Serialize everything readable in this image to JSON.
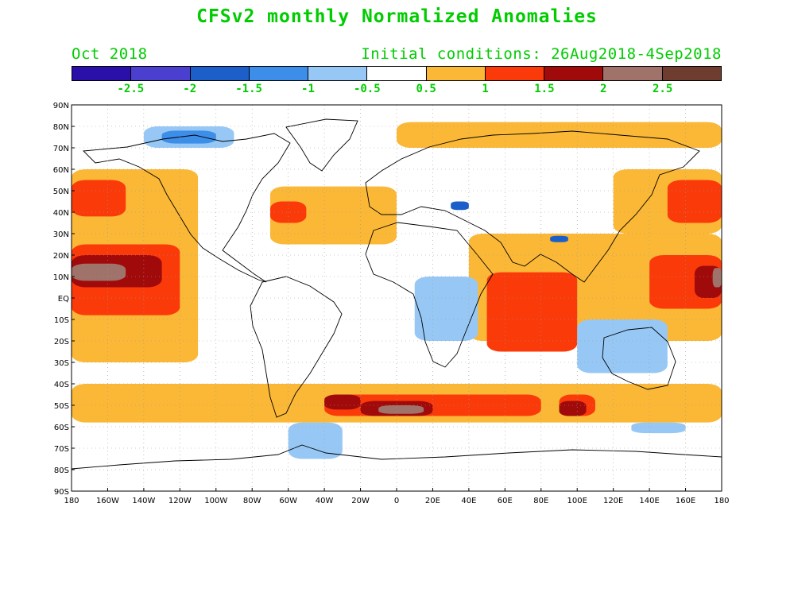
{
  "title": "CFSv2 monthly Normalized Anomalies",
  "month_label": "Oct 2018",
  "initial_conditions": "Initial conditions: 26Aug2018-4Sep2018",
  "text_color": "#00cc00",
  "colorbar": {
    "colors": [
      "#2a0fa8",
      "#4b3fcf",
      "#1c5fc9",
      "#3c8ee8",
      "#97c8f5",
      "#ffffff",
      "#fbb836",
      "#fb3a0a",
      "#a10a0a",
      "#a0736a",
      "#6e3d30"
    ],
    "labels": [
      "-2.5",
      "-2",
      "-1.5",
      "-1",
      "-0.5",
      "0.5",
      "1",
      "1.5",
      "2",
      "2.5"
    ]
  },
  "map": {
    "projection": "cylindrical equidistant",
    "lat_labels": [
      "90N",
      "80N",
      "70N",
      "60N",
      "50N",
      "40N",
      "30N",
      "20N",
      "10N",
      "EQ",
      "10S",
      "20S",
      "30S",
      "40S",
      "50S",
      "60S",
      "70S",
      "80S",
      "90S"
    ],
    "lon_labels": [
      "180",
      "160W",
      "140W",
      "120W",
      "100W",
      "80W",
      "60W",
      "40W",
      "20W",
      "0",
      "20E",
      "40E",
      "60E",
      "80E",
      "100E",
      "120E",
      "140E",
      "160E",
      "180"
    ],
    "grid": "dotted",
    "anomaly_regions": [
      {
        "level": "0.5-1",
        "color": "#fbb836",
        "lon": [
          -180,
          180
        ],
        "lat": [
          -58,
          -40
        ]
      },
      {
        "level": "0.5-1",
        "color": "#fbb836",
        "lon": [
          -180,
          -110
        ],
        "lat": [
          -30,
          60
        ]
      },
      {
        "level": "0.5-1",
        "color": "#fbb836",
        "lon": [
          -70,
          0
        ],
        "lat": [
          25,
          52
        ]
      },
      {
        "level": "0.5-1",
        "color": "#fbb836",
        "lon": [
          0,
          180
        ],
        "lat": [
          70,
          82
        ]
      },
      {
        "level": "0.5-1",
        "color": "#fbb836",
        "lon": [
          40,
          180
        ],
        "lat": [
          -20,
          30
        ]
      },
      {
        "level": "0.5-1",
        "color": "#fbb836",
        "lon": [
          120,
          180
        ],
        "lat": [
          30,
          60
        ]
      },
      {
        "level": "1-1.5",
        "color": "#fb3a0a",
        "lon": [
          -180,
          -120
        ],
        "lat": [
          -8,
          25
        ]
      },
      {
        "level": "1-1.5",
        "color": "#fb3a0a",
        "lon": [
          -180,
          -150
        ],
        "lat": [
          38,
          55
        ]
      },
      {
        "level": "1-1.5",
        "color": "#fb3a0a",
        "lon": [
          50,
          100
        ],
        "lat": [
          -25,
          12
        ]
      },
      {
        "level": "1-1.5",
        "color": "#fb3a0a",
        "lon": [
          140,
          180
        ],
        "lat": [
          -5,
          20
        ]
      },
      {
        "level": "1-1.5",
        "color": "#fb3a0a",
        "lon": [
          150,
          180
        ],
        "lat": [
          35,
          55
        ]
      },
      {
        "level": "1-1.5",
        "color": "#fb3a0a",
        "lon": [
          -40,
          80
        ],
        "lat": [
          -55,
          -45
        ]
      },
      {
        "level": "1-1.5",
        "color": "#fb3a0a",
        "lon": [
          90,
          110
        ],
        "lat": [
          -55,
          -45
        ]
      },
      {
        "level": "1-1.5",
        "color": "#fb3a0a",
        "lon": [
          -70,
          -50
        ],
        "lat": [
          35,
          45
        ]
      },
      {
        "level": "1.5-2",
        "color": "#a10a0a",
        "lon": [
          -180,
          -130
        ],
        "lat": [
          5,
          20
        ]
      },
      {
        "level": "1.5-2",
        "color": "#a10a0a",
        "lon": [
          165,
          180
        ],
        "lat": [
          0,
          15
        ]
      },
      {
        "level": "1.5-2",
        "color": "#a10a0a",
        "lon": [
          -40,
          -20
        ],
        "lat": [
          -52,
          -45
        ]
      },
      {
        "level": "1.5-2",
        "color": "#a10a0a",
        "lon": [
          -20,
          20
        ],
        "lat": [
          -55,
          -48
        ]
      },
      {
        "level": "1.5-2",
        "color": "#a10a0a",
        "lon": [
          90,
          105
        ],
        "lat": [
          -55,
          -48
        ]
      },
      {
        "level": "2-2.5",
        "color": "#a0736a",
        "lon": [
          -180,
          -150
        ],
        "lat": [
          8,
          16
        ]
      },
      {
        "level": "2-2.5",
        "color": "#a0736a",
        "lon": [
          175,
          180
        ],
        "lat": [
          5,
          14
        ]
      },
      {
        "level": "2-2.5",
        "color": "#a0736a",
        "lon": [
          -10,
          15
        ],
        "lat": [
          -54,
          -50
        ]
      },
      {
        "level": "-0.5--1",
        "color": "#97c8f5",
        "lon": [
          -140,
          -90
        ],
        "lat": [
          70,
          80
        ]
      },
      {
        "level": "-0.5--1",
        "color": "#97c8f5",
        "lon": [
          -60,
          -30
        ],
        "lat": [
          -75,
          -58
        ]
      },
      {
        "level": "-0.5--1",
        "color": "#97c8f5",
        "lon": [
          100,
          150
        ],
        "lat": [
          -35,
          -10
        ]
      },
      {
        "level": "-0.5--1",
        "color": "#97c8f5",
        "lon": [
          10,
          45
        ],
        "lat": [
          -20,
          10
        ]
      },
      {
        "level": "-0.5--1",
        "color": "#97c8f5",
        "lon": [
          130,
          160
        ],
        "lat": [
          -63,
          -58
        ]
      },
      {
        "level": "-1--1.5",
        "color": "#3c8ee8",
        "lon": [
          -130,
          -100
        ],
        "lat": [
          72,
          78
        ]
      },
      {
        "level": "-1.5--2",
        "color": "#1c5fc9",
        "lon": [
          30,
          40
        ],
        "lat": [
          41,
          45
        ]
      },
      {
        "level": "-1.5--2",
        "color": "#1c5fc9",
        "lon": [
          85,
          95
        ],
        "lat": [
          26,
          29
        ]
      }
    ]
  }
}
